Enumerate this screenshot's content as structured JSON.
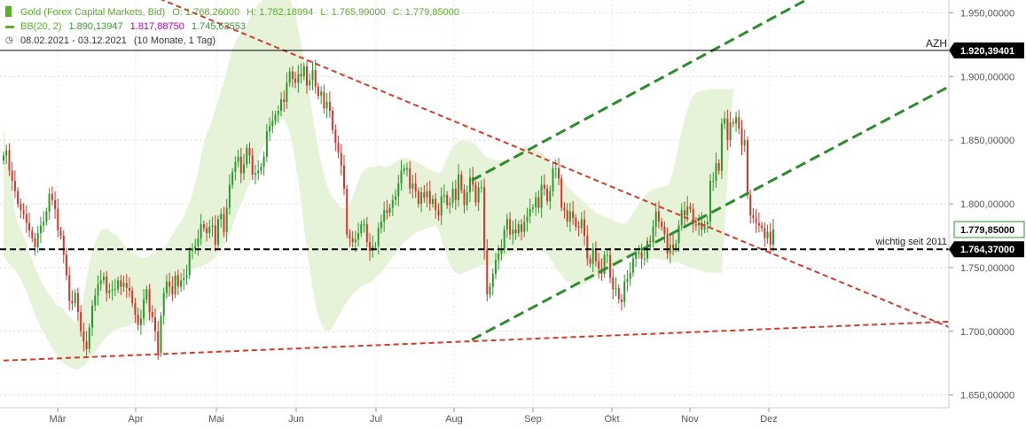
{
  "legend": {
    "instrument": "Gold (Forex Capital Markets, Bid)",
    "ohlc": {
      "open_label": "O:",
      "open": "1.768,26000",
      "high_label": "H:",
      "high": "1.782,18994",
      "low_label": "L:",
      "low": "1.765,99000",
      "close_label": "C:",
      "close": "1.779,85000"
    },
    "bb_label": "BB(20, 2)",
    "bb_upper": "1.890,13947",
    "bb_mid": "1.817,88750",
    "bb_lower": "1.745,63553",
    "range": "08.02.2021 - 03.12.2021",
    "period": "(10 Monate, 1 Tag)",
    "icons": {
      "chart": "candlestick-icon",
      "bb": "line-icon",
      "time": "clock-icon"
    }
  },
  "colors": {
    "candle_up": "#2a9a2a",
    "candle_down": "#d8352a",
    "band_fill": "#e4f2d4",
    "trend_red": "#d63a2a",
    "trend_green": "#2e8b2e",
    "horizontal": "#000000",
    "label_bg": "#000000"
  },
  "chart_data": {
    "type": "candlestick",
    "x_axis": {
      "months": [
        "Mär",
        "Apr",
        "Mai",
        "Jun",
        "Jul",
        "Aug",
        "Sep",
        "Okt",
        "Nov",
        "Dez"
      ]
    },
    "y_axis": {
      "ticks": [
        1950,
        1900,
        1850,
        1800,
        1750,
        1700,
        1650
      ],
      "tick_labels": [
        "1.950,00000",
        "1.900,00000",
        "1.850,00000",
        "1.800,00000",
        "1.750,00000",
        "1.700,00000",
        "1.650,00000"
      ],
      "range": [
        1640,
        1960
      ]
    },
    "price_levels": [
      {
        "name": "AZH",
        "value": 1920.39401,
        "label": "1.920,39401",
        "style": "solid"
      },
      {
        "name": "current",
        "value": 1779.85,
        "label": "1.779,85000",
        "style": "marker"
      },
      {
        "name": "wichtig seit 2011",
        "value": 1764.37,
        "label": "1.764,37000",
        "style": "dashed"
      }
    ],
    "annotations": {
      "azh": "AZH",
      "support": "wichtig seit 2011"
    },
    "closes": [
      1838,
      1842,
      1826,
      1818,
      1810,
      1800,
      1795,
      1792,
      1785,
      1779,
      1773,
      1766,
      1777,
      1783,
      1786,
      1794,
      1808,
      1803,
      1796,
      1779,
      1775,
      1760,
      1744,
      1724,
      1722,
      1730,
      1715,
      1700,
      1692,
      1686,
      1703,
      1720,
      1728,
      1737,
      1740,
      1743,
      1730,
      1732,
      1733,
      1733,
      1740,
      1735,
      1738,
      1734,
      1732,
      1722,
      1713,
      1705,
      1710,
      1725,
      1733,
      1715,
      1711,
      1700,
      1683,
      1712,
      1730,
      1739,
      1735,
      1729,
      1744,
      1735,
      1740,
      1742,
      1744,
      1763,
      1765,
      1767,
      1773,
      1784,
      1781,
      1777,
      1782,
      1783,
      1768,
      1788,
      1792,
      1778,
      1797,
      1815,
      1825,
      1833,
      1837,
      1824,
      1831,
      1844,
      1838,
      1823,
      1824,
      1826,
      1829,
      1837,
      1857,
      1861,
      1865,
      1870,
      1873,
      1882,
      1880,
      1895,
      1904,
      1898,
      1895,
      1902,
      1900,
      1908,
      1893,
      1897,
      1905,
      1892,
      1885,
      1888,
      1875,
      1880,
      1873,
      1858,
      1848,
      1840,
      1830,
      1812,
      1776,
      1773,
      1770,
      1772,
      1777,
      1784,
      1784,
      1770,
      1763,
      1767,
      1767,
      1781,
      1786,
      1795,
      1793,
      1797,
      1803,
      1806,
      1816,
      1826,
      1828,
      1828,
      1812,
      1816,
      1810,
      1800,
      1809,
      1805,
      1810,
      1800,
      1804,
      1795,
      1791,
      1806,
      1807,
      1799,
      1801,
      1812,
      1803,
      1823,
      1811,
      1799,
      1809,
      1821,
      1815,
      1801,
      1813,
      1813,
      1764,
      1729,
      1735,
      1745,
      1756,
      1761,
      1764,
      1780,
      1788,
      1776,
      1780,
      1777,
      1784,
      1778,
      1786,
      1790,
      1796,
      1797,
      1805,
      1797,
      1815,
      1812,
      1802,
      1810,
      1828,
      1828,
      1820,
      1797,
      1795,
      1786,
      1794,
      1789,
      1782,
      1781,
      1788,
      1775,
      1757,
      1753,
      1765,
      1755,
      1749,
      1745,
      1760,
      1760,
      1742,
      1733,
      1734,
      1725,
      1723,
      1739,
      1741,
      1746,
      1757,
      1761,
      1762,
      1757,
      1757,
      1771,
      1770,
      1782,
      1794,
      1786,
      1782,
      1776,
      1761,
      1768,
      1765,
      1769,
      1783,
      1795,
      1791,
      1798,
      1796,
      1784,
      1783,
      1785,
      1780,
      1784,
      1786,
      1818,
      1818,
      1832,
      1826,
      1863,
      1867,
      1850,
      1864,
      1863,
      1868,
      1859,
      1846,
      1850,
      1807,
      1791,
      1789,
      1785,
      1783,
      1781,
      1773,
      1778,
      1768,
      1779.85
    ],
    "band_upper": [
      1860,
      1842,
      1824,
      1808,
      1793,
      1785,
      1780,
      1775,
      1769,
      1762,
      1756,
      1750,
      1745,
      1740,
      1736,
      1731,
      1729,
      1726,
      1722,
      1720,
      1719,
      1717,
      1714,
      1712,
      1709,
      1707,
      1710,
      1716,
      1728,
      1741,
      1753,
      1763,
      1770,
      1775,
      1779,
      1780,
      1781,
      1779,
      1777,
      1776,
      1774,
      1771,
      1768,
      1766,
      1764,
      1762,
      1760,
      1759,
      1758,
      1758,
      1758,
      1760,
      1761,
      1762,
      1763,
      1764,
      1766,
      1768,
      1772,
      1776,
      1780,
      1783,
      1786,
      1790,
      1796,
      1801,
      1808,
      1816,
      1826,
      1837,
      1848,
      1855,
      1860,
      1866,
      1874,
      1881,
      1889,
      1896,
      1905,
      1914,
      1921,
      1927,
      1931,
      1935,
      1938,
      1940,
      1945,
      1949,
      1952,
      1957,
      1958,
      1962,
      1964,
      1967,
      1969,
      1972,
      1973,
      1972,
      1969,
      1966,
      1961,
      1955,
      1947,
      1937,
      1925,
      1912,
      1898,
      1884,
      1870,
      1856,
      1843,
      1832,
      1822,
      1815,
      1809,
      1805,
      1802,
      1799,
      1797,
      1796,
      1796,
      1800,
      1806,
      1812,
      1818,
      1823,
      1826,
      1828,
      1829,
      1829,
      1829,
      1830,
      1830,
      1829,
      1829,
      1830,
      1831,
      1833,
      1834,
      1836,
      1836,
      1836,
      1835,
      1834,
      1833,
      1832,
      1831,
      1829,
      1828,
      1827,
      1826,
      1825,
      1824,
      1825,
      1830,
      1836,
      1840,
      1845,
      1847,
      1849,
      1850,
      1850,
      1849,
      1849,
      1848,
      1847,
      1844,
      1841,
      1838,
      1836,
      1835,
      1835,
      1834,
      1834,
      1834,
      1834,
      1834,
      1835,
      1837,
      1839,
      1842,
      1843,
      1845,
      1845,
      1845,
      1844,
      1843,
      1842,
      1840,
      1838,
      1835,
      1832,
      1829,
      1826,
      1823,
      1820,
      1817,
      1814,
      1812,
      1809,
      1807,
      1805,
      1803,
      1801,
      1799,
      1797,
      1795,
      1793,
      1792,
      1791,
      1790,
      1789,
      1788,
      1787,
      1786,
      1785,
      1784,
      1784,
      1786,
      1789,
      1793,
      1796,
      1800,
      1803,
      1806,
      1808,
      1810,
      1812,
      1812,
      1813,
      1813,
      1814,
      1814,
      1818,
      1826,
      1836,
      1847,
      1857,
      1866,
      1874,
      1880,
      1885,
      1887,
      1888,
      1889,
      1889,
      1890,
      1890,
      1890,
      1890,
      1890,
      1890,
      1890,
      1890,
      1890,
      1890.14
    ],
    "band_lower": [
      1760,
      1756,
      1753,
      1750,
      1748,
      1745,
      1741,
      1736,
      1731,
      1725,
      1719,
      1713,
      1708,
      1703,
      1699,
      1695,
      1691,
      1687,
      1683,
      1680,
      1677,
      1675,
      1673,
      1672,
      1671,
      1670,
      1670,
      1671,
      1673,
      1675,
      1678,
      1681,
      1684,
      1687,
      1690,
      1693,
      1696,
      1698,
      1700,
      1701,
      1702,
      1703,
      1703,
      1704,
      1705,
      1706,
      1707,
      1707,
      1708,
      1708,
      1708,
      1710,
      1712,
      1714,
      1716,
      1719,
      1722,
      1725,
      1728,
      1732,
      1735,
      1738,
      1741,
      1744,
      1747,
      1748,
      1749,
      1750,
      1750,
      1751,
      1752,
      1753,
      1754,
      1756,
      1758,
      1761,
      1764,
      1768,
      1772,
      1777,
      1783,
      1789,
      1795,
      1800,
      1805,
      1811,
      1816,
      1822,
      1828,
      1834,
      1840,
      1846,
      1851,
      1855,
      1859,
      1862,
      1865,
      1867,
      1866,
      1862,
      1856,
      1846,
      1833,
      1818,
      1801,
      1782,
      1764,
      1748,
      1734,
      1722,
      1713,
      1706,
      1702,
      1700,
      1701,
      1703,
      1707,
      1711,
      1716,
      1720,
      1723,
      1726,
      1729,
      1731,
      1733,
      1735,
      1736,
      1737,
      1738,
      1740,
      1742,
      1744,
      1746,
      1749,
      1752,
      1755,
      1758,
      1761,
      1764,
      1767,
      1770,
      1772,
      1774,
      1776,
      1777,
      1778,
      1779,
      1780,
      1781,
      1782,
      1782,
      1783,
      1780,
      1772,
      1765,
      1758,
      1752,
      1748,
      1746,
      1745,
      1745,
      1746,
      1747,
      1748,
      1749,
      1750,
      1751,
      1752,
      1752,
      1752,
      1752,
      1752,
      1753,
      1754,
      1756,
      1758,
      1760,
      1761,
      1762,
      1763,
      1763,
      1763,
      1763,
      1763,
      1764,
      1765,
      1765,
      1765,
      1764,
      1762,
      1760,
      1757,
      1754,
      1750,
      1747,
      1744,
      1741,
      1739,
      1738,
      1737,
      1736,
      1736,
      1736,
      1737,
      1738,
      1740,
      1741,
      1743,
      1744,
      1745,
      1746,
      1747,
      1748,
      1749,
      1750,
      1752,
      1754,
      1756,
      1758,
      1759,
      1760,
      1760,
      1760,
      1759,
      1758,
      1758,
      1757,
      1757,
      1757,
      1757,
      1756,
      1756,
      1755,
      1755,
      1754,
      1754,
      1754,
      1753,
      1752,
      1751,
      1750,
      1749,
      1749,
      1748,
      1747,
      1747,
      1746,
      1746,
      1746,
      1746,
      1746,
      1745.64
    ],
    "trendlines": [
      {
        "name": "resistance-falling",
        "style": "red-dashed",
        "points": [
          [
            0,
            2012
          ],
          [
            259,
            1770
          ]
        ]
      },
      {
        "name": "support-rising",
        "style": "red-dashed",
        "points": [
          [
            0,
            1677
          ],
          [
            259,
            1701
          ]
        ]
      },
      {
        "name": "channel-upper",
        "style": "green-dashed",
        "points": [
          [
            160,
            1814
          ],
          [
            259,
            1934
          ]
        ]
      },
      {
        "name": "channel-lower",
        "style": "green-dashed",
        "points": [
          [
            160,
            1689
          ],
          [
            259,
            1807
          ]
        ]
      }
    ]
  }
}
